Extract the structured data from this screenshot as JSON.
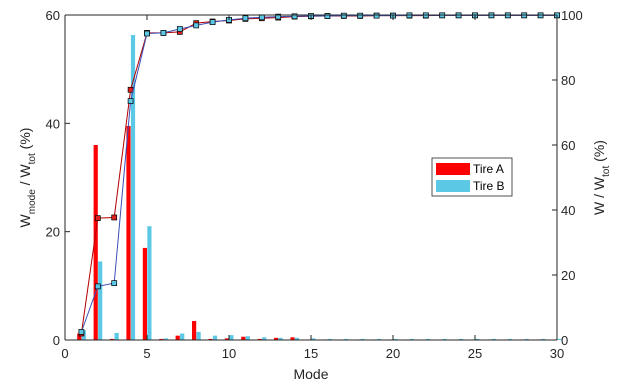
{
  "chart_data": {
    "type": "bar",
    "xlabel": "Mode",
    "ylabel_left": {
      "main": "W",
      "sub1": "mode",
      "mid": " / W",
      "sub2": "tot",
      "tail": " (%)"
    },
    "ylabel_right": {
      "main": "W / W",
      "sub": "tot",
      "tail": " (%)"
    },
    "xlim": [
      0,
      30
    ],
    "ylim_left": [
      0,
      60
    ],
    "ylim_right": [
      0,
      100
    ],
    "xticks": [
      0,
      5,
      10,
      15,
      20,
      25,
      30
    ],
    "yticks_left": [
      0,
      20,
      40,
      60
    ],
    "yticks_right": [
      0,
      20,
      40,
      60,
      80,
      100
    ],
    "legend_position": "center-right",
    "series": [
      {
        "name": "Tire A",
        "color": "#ff0000",
        "modes": [
          1,
          2,
          3,
          4,
          5,
          6,
          7,
          8,
          9,
          10,
          11,
          12,
          13,
          14,
          15,
          16,
          17,
          18,
          19,
          20,
          21,
          22,
          23,
          24,
          25,
          26,
          27,
          28,
          29,
          30
        ],
        "values": [
          1.2,
          36,
          0.2,
          39.5,
          17,
          0.2,
          0.8,
          3.5,
          0.2,
          0.3,
          0.6,
          0.2,
          0.4,
          0.5,
          0.1,
          0.1,
          0.1,
          0.1,
          0.1,
          0.1,
          0.1,
          0.1,
          0.1,
          0.1,
          0.1,
          0.1,
          0.1,
          0.1,
          0.1,
          0.1
        ],
        "cumulative": [
          2,
          37.5,
          37.7,
          77,
          94.5,
          94.5,
          94.8,
          97.5,
          98,
          98.3,
          98.8,
          99,
          99.2,
          99.5,
          99.6,
          99.7,
          99.7,
          99.7,
          99.8,
          99.8,
          99.8,
          99.8,
          99.9,
          99.9,
          99.9,
          99.9,
          99.9,
          99.9,
          99.9,
          99.9
        ]
      },
      {
        "name": "Tire B",
        "color": "#5bc8e6",
        "modes": [
          1,
          2,
          3,
          4,
          5,
          6,
          7,
          8,
          9,
          10,
          11,
          12,
          13,
          14,
          15,
          16,
          17,
          18,
          19,
          20,
          21,
          22,
          23,
          24,
          25,
          26,
          27,
          28,
          29,
          30
        ],
        "values": [
          1.8,
          14.5,
          1.3,
          56.3,
          21,
          0.3,
          1.2,
          1.5,
          0.8,
          0.9,
          0.7,
          0.5,
          0.4,
          0.4,
          0.3,
          0.2,
          0.2,
          0.2,
          0.2,
          0.2,
          0.2,
          0.2,
          0.2,
          0.2,
          0.2,
          0.2,
          0.2,
          0.2,
          0.2,
          0.2
        ],
        "cumulative": [
          2.5,
          16.5,
          17.5,
          73.5,
          94.3,
          94.5,
          95.7,
          96.8,
          97.8,
          98.5,
          99,
          99.3,
          99.5,
          99.6,
          99.7,
          99.7,
          99.8,
          99.8,
          99.8,
          99.8,
          99.9,
          99.9,
          99.9,
          99.9,
          99.9,
          99.9,
          99.9,
          99.9,
          99.9,
          99.9
        ]
      }
    ]
  }
}
